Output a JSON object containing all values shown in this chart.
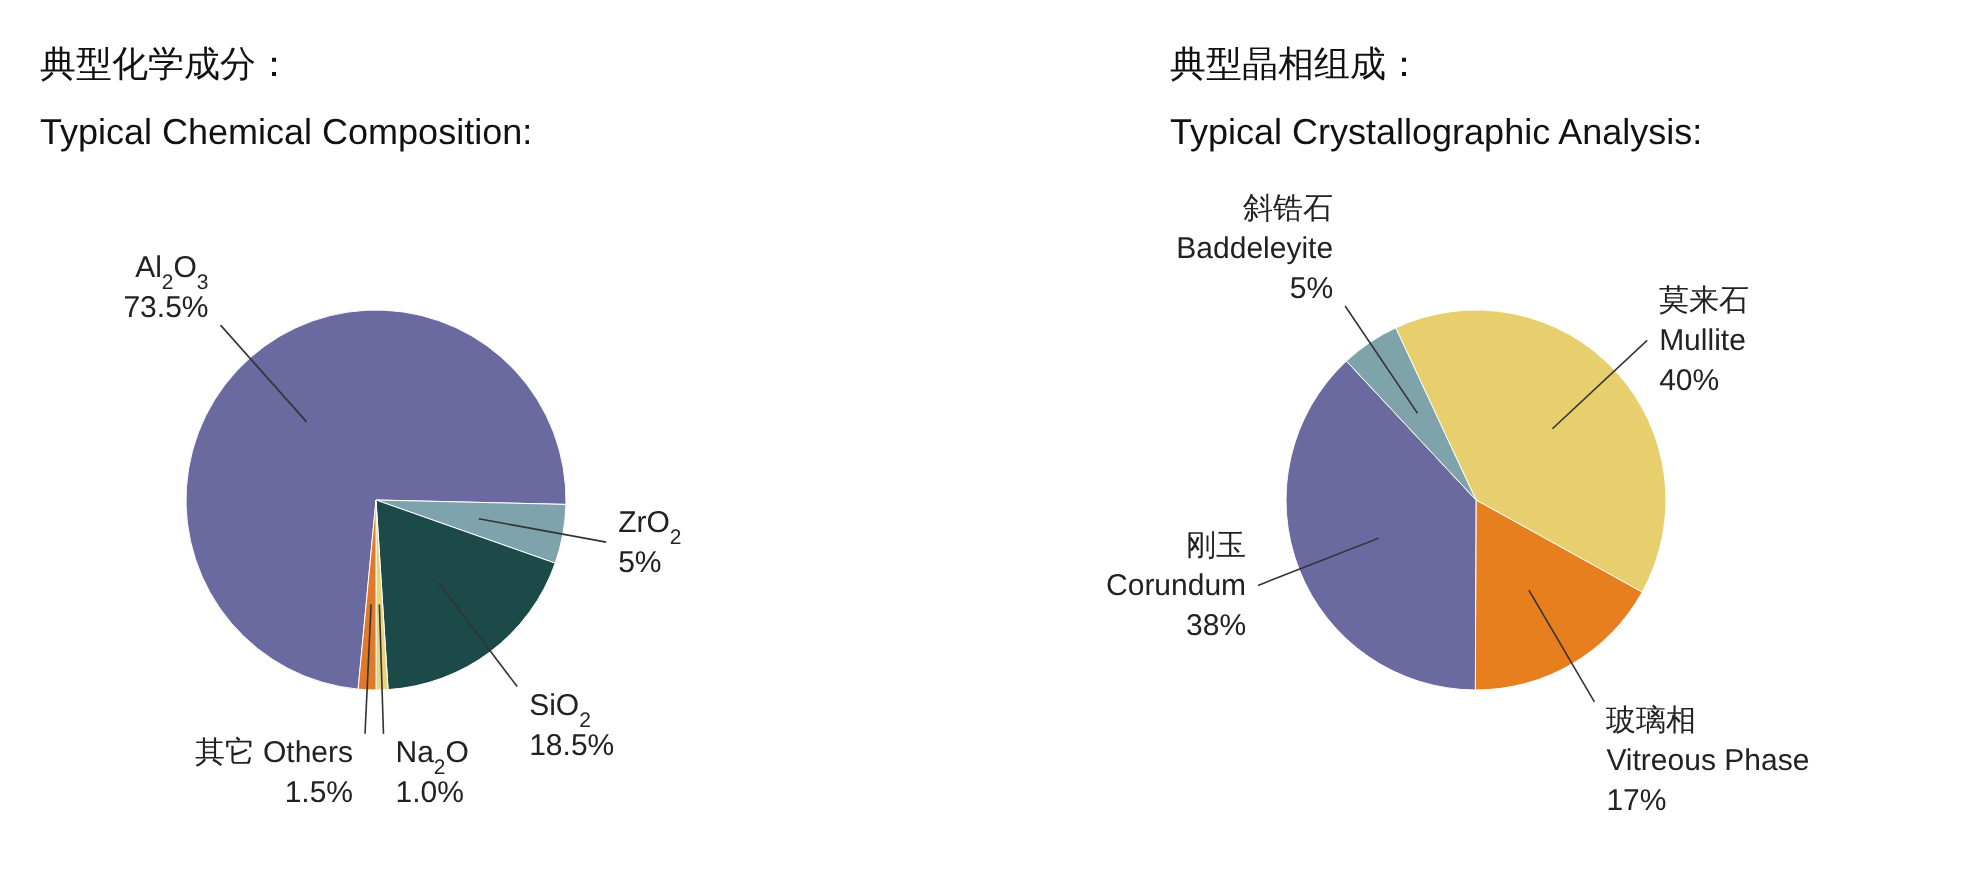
{
  "chart_data": [
    {
      "type": "pie",
      "title": "典型化学成分：",
      "subtitle": "Typical Chemical Composition:",
      "categories": [
        "Al$_{2}$O$_{3}$",
        "ZrO$_{2}$",
        "SiO$_{2}$",
        "Na$_{2}$O",
        "其它 Others"
      ],
      "values": [
        73.5,
        5,
        18.5,
        1.0,
        1.5
      ],
      "value_labels": [
        "73.5%",
        "5%",
        "18.5%",
        "1.0%",
        "1.5%"
      ],
      "colors": [
        "#6a69a0",
        "#7ea3ad",
        "#1b4a48",
        "#e9d47c",
        "#e17a28"
      ]
    },
    {
      "type": "pie",
      "title": "典型晶相组成：",
      "subtitle": "Typical Crystallographic Analysis:",
      "categories": [
        "莫来石\nMullite",
        "玻璃相\nVitreous Phase",
        "刚玉\nCorundum",
        "斜锆石\nBaddeleyite"
      ],
      "values": [
        40,
        17,
        38,
        5
      ],
      "value_labels": [
        "40%",
        "17%",
        "38%",
        "5%"
      ],
      "colors": [
        "#e6cf6c",
        "#e77f1f",
        "#6a69a0",
        "#7ea3aa"
      ]
    }
  ]
}
